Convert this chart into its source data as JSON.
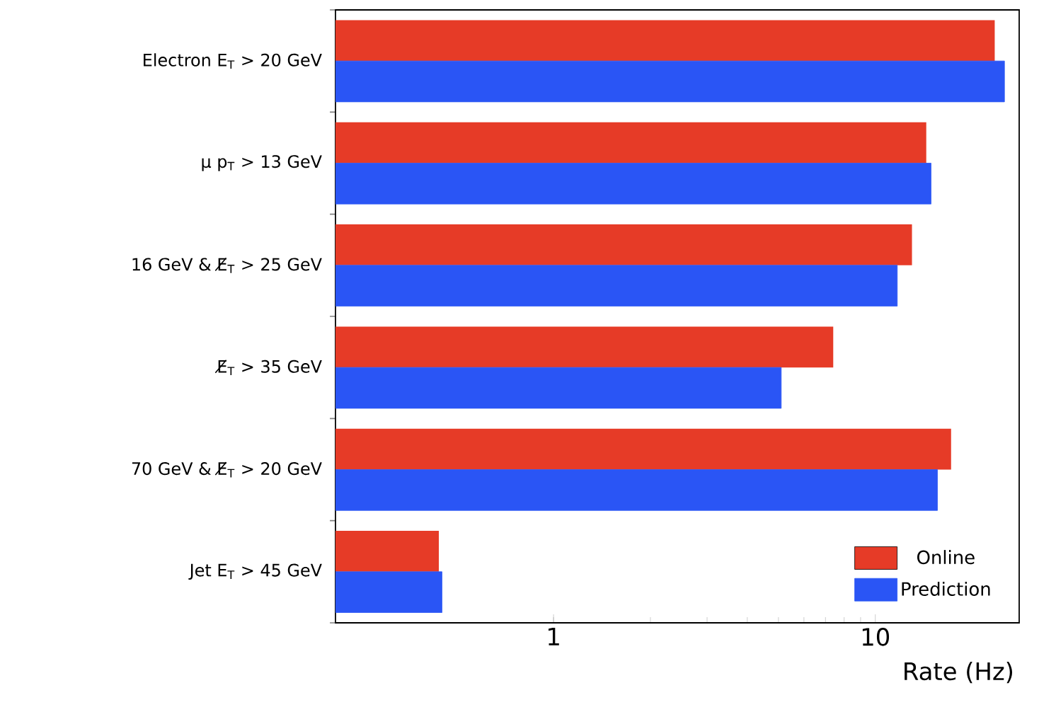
{
  "chart_data": {
    "type": "bar",
    "orientation": "horizontal",
    "log": "x",
    "legend": "bottom right",
    "xlabel": "Rate (Hz)",
    "xlim": [
      0.21,
      28
    ],
    "xticks": [
      1,
      10
    ],
    "categories": [
      "Electron E$_{T}$ > 20 GeV",
      "μ p$_{T}$ > 13 GeV",
      "16 GeV & E̸$_{T}$ > 25 GeV",
      "E̸$_{T}$ > 35 GeV",
      "70 GeV & E̸$_{T}$ > 20 GeV",
      "Jet E$_{T}$ > 45 GeV"
    ],
    "series": [
      {
        "name": "Online",
        "color": "#e63b27",
        "values": [
          23.5,
          14.4,
          13.0,
          7.4,
          17.2,
          0.44
        ]
      },
      {
        "name": "Prediction",
        "color": "#2a55f5",
        "values": [
          25.2,
          14.9,
          11.7,
          5.1,
          15.6,
          0.45
        ]
      }
    ]
  }
}
